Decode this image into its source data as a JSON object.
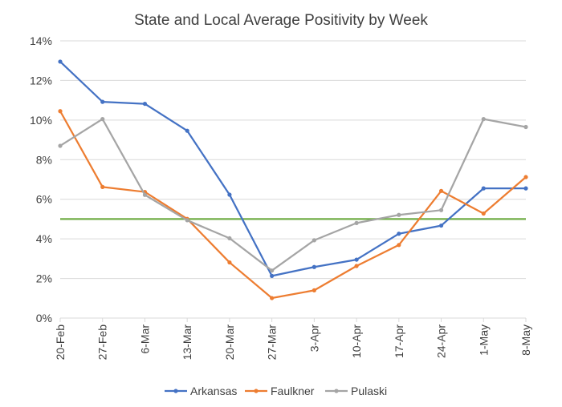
{
  "chart_data": {
    "type": "line",
    "title": "State and Local Average Positivity by Week",
    "xlabel": "",
    "ylabel": "",
    "categories": [
      "20-Feb",
      "27-Feb",
      "6-Mar",
      "13-Mar",
      "20-Mar",
      "27-Mar",
      "3-Apr",
      "10-Apr",
      "17-Apr",
      "24-Apr",
      "1-May",
      "8-May"
    ],
    "ylim": [
      0,
      0.14
    ],
    "yticks": [
      0,
      0.02,
      0.04,
      0.06,
      0.08,
      0.1,
      0.12,
      0.14
    ],
    "ytick_labels": [
      "0%",
      "2%",
      "4%",
      "6%",
      "8%",
      "10%",
      "12%",
      "14%"
    ],
    "grid": true,
    "legend_position": "bottom",
    "series": [
      {
        "name": "Arkansas",
        "color": "#4472C4",
        "values": [
          0.1295,
          0.1092,
          0.1082,
          0.0946,
          0.0623,
          0.0213,
          0.0258,
          0.0295,
          0.0426,
          0.0467,
          0.0655,
          0.0655
        ]
      },
      {
        "name": "Faulkner",
        "color": "#ED7D31",
        "values": [
          0.1045,
          0.0662,
          0.0637,
          0.0501,
          0.0281,
          0.0101,
          0.014,
          0.0263,
          0.0369,
          0.0642,
          0.0528,
          0.0712
        ]
      },
      {
        "name": "Pulaski",
        "color": "#A5A5A5",
        "values": [
          0.087,
          0.1005,
          0.0622,
          0.0494,
          0.0403,
          0.024,
          0.0393,
          0.048,
          0.0521,
          0.0545,
          0.1005,
          0.0965
        ]
      }
    ],
    "reference_line": {
      "value": 0.05,
      "color": "#70AD47"
    }
  }
}
